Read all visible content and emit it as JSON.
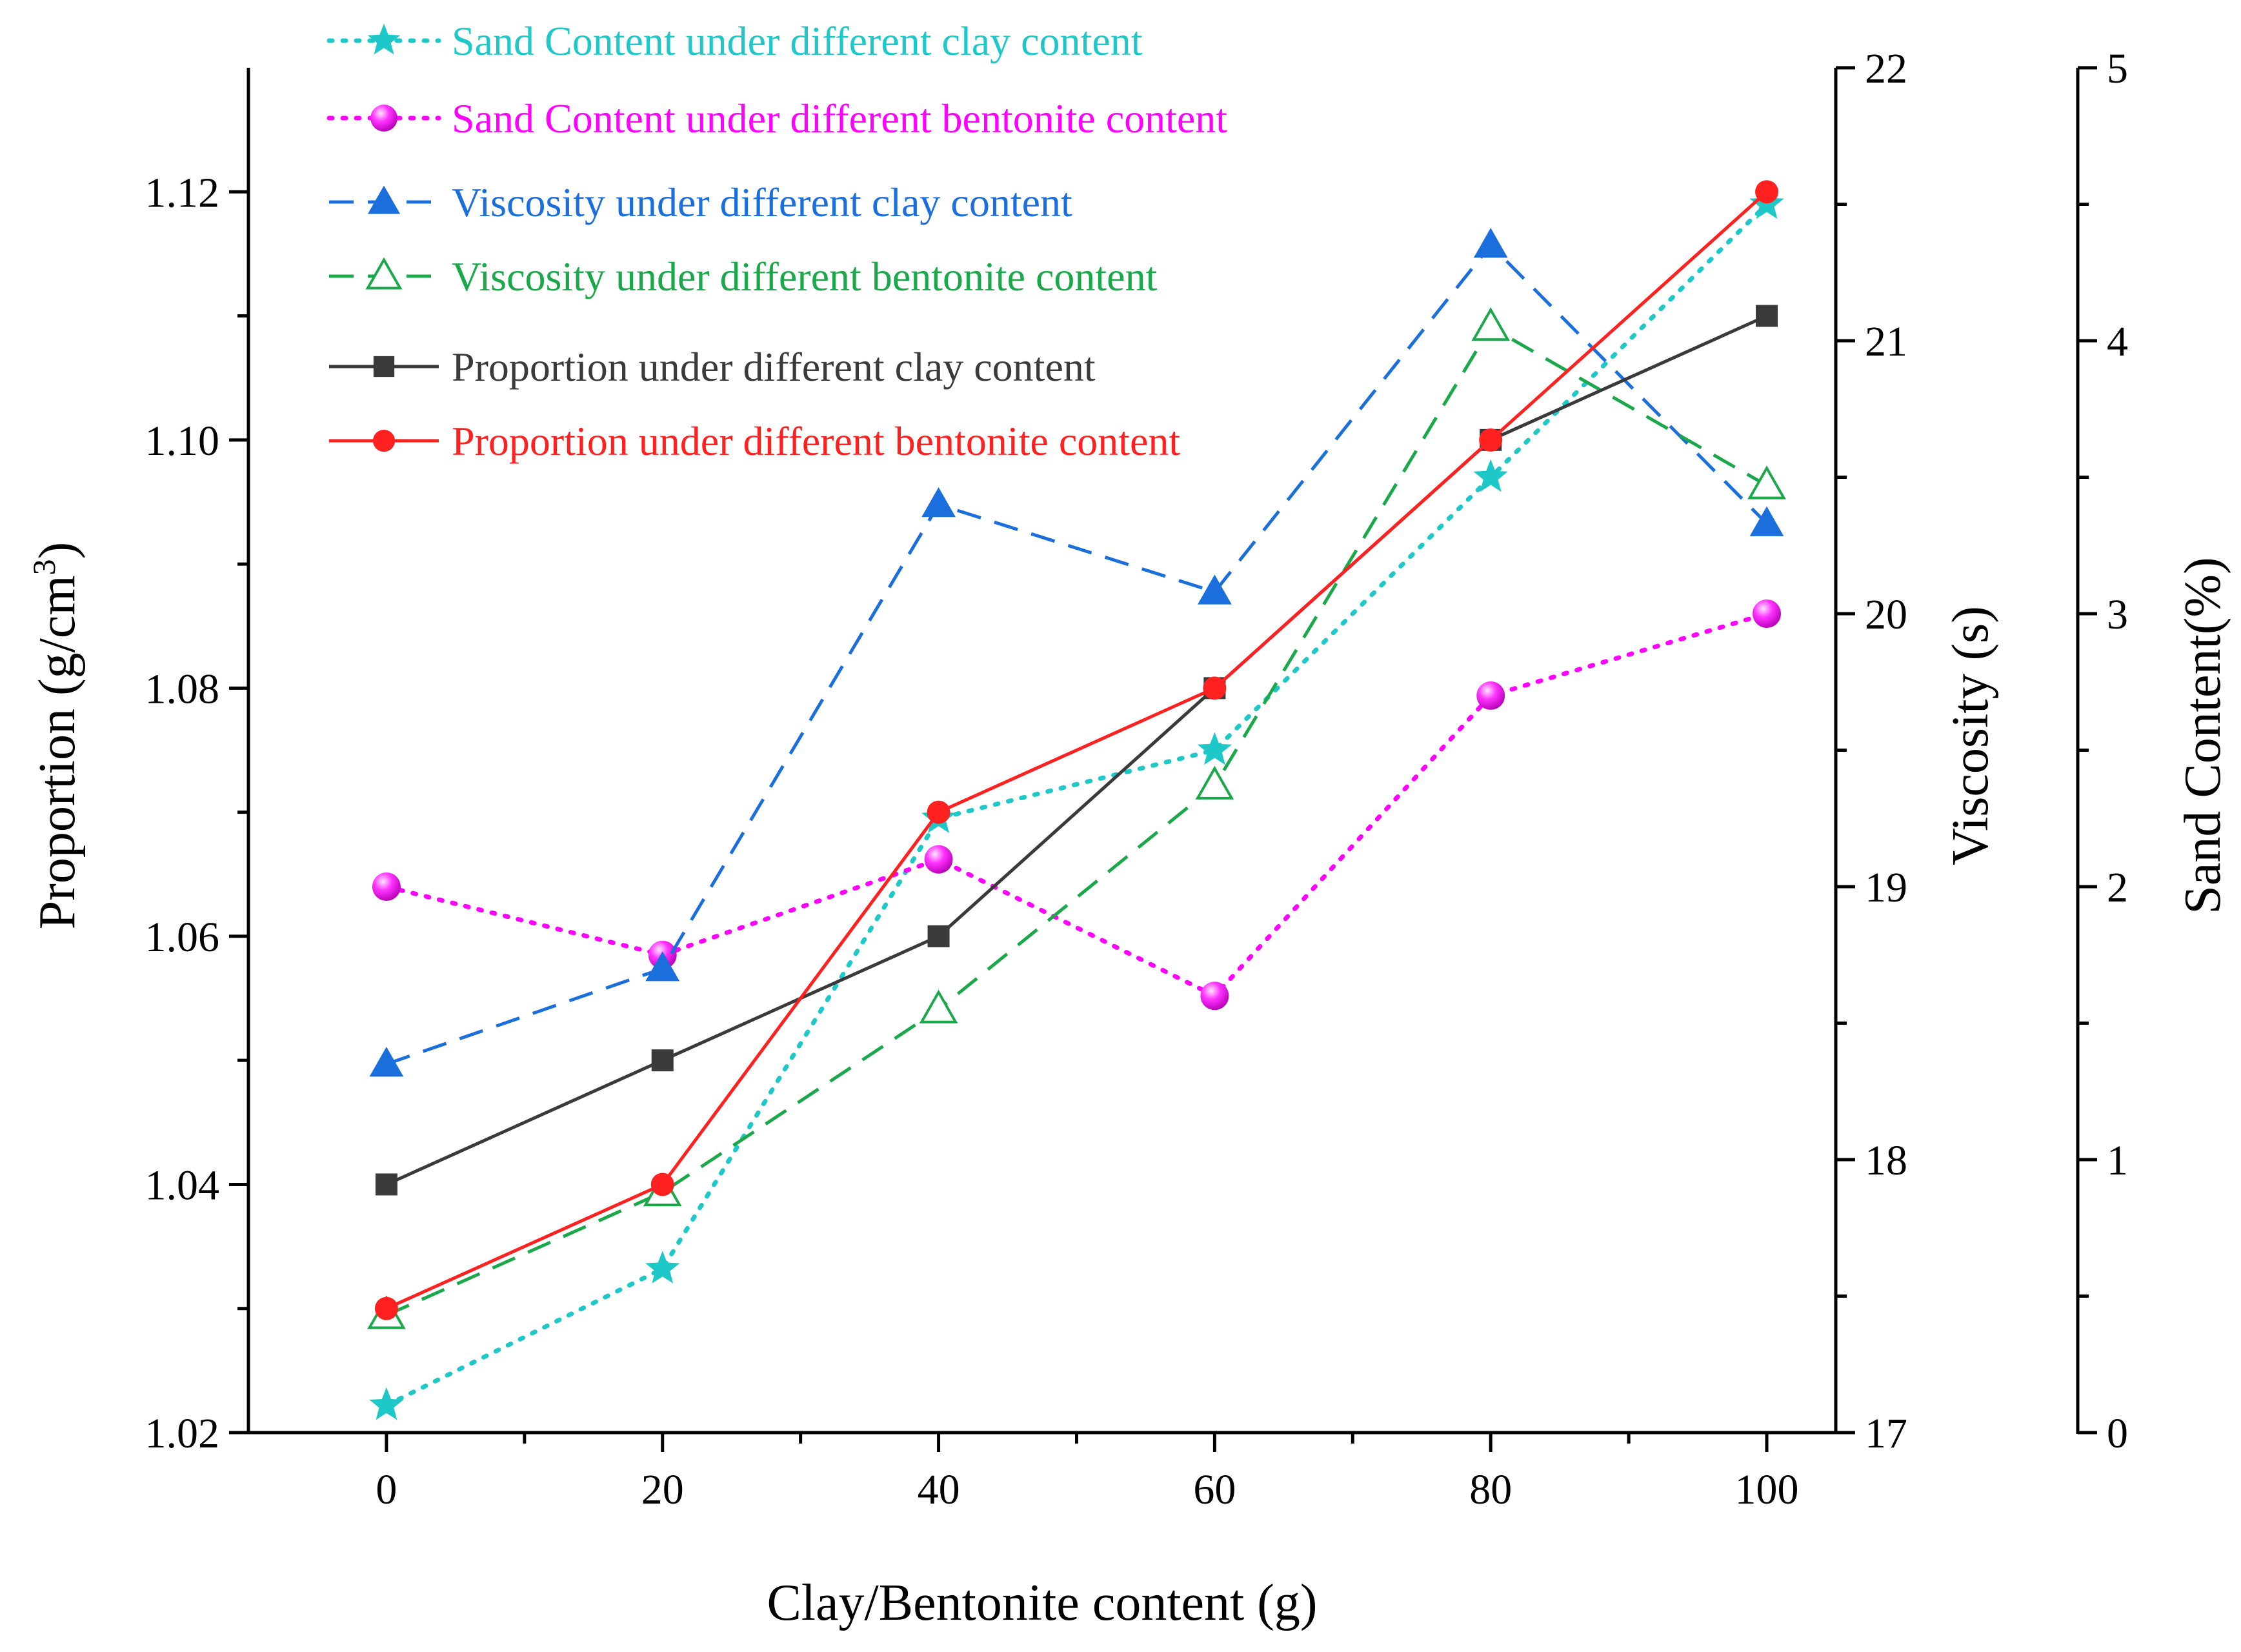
{
  "chart_data": {
    "type": "line",
    "xlabel": "Clay/Bentonite content (g)",
    "x": [
      0,
      20,
      40,
      60,
      80,
      100
    ],
    "x_ticks": [
      "0",
      "20",
      "40",
      "60",
      "80",
      "100"
    ],
    "xlim": [
      -10,
      105
    ],
    "axes": {
      "proportion": {
        "label": "Proportion (g/cm",
        "label_sup": "3",
        "label_end": ")",
        "ylim": [
          1.02,
          1.13
        ],
        "ticks": [
          "1.02",
          "1.04",
          "1.06",
          "1.08",
          "1.10",
          "1.12"
        ],
        "tick_values": [
          1.02,
          1.04,
          1.06,
          1.08,
          1.1,
          1.12
        ]
      },
      "viscosity": {
        "label": "Viscosity (s)",
        "ylim": [
          17,
          22
        ],
        "ticks": [
          "17",
          "18",
          "19",
          "20",
          "21",
          "22"
        ],
        "tick_values": [
          17,
          18,
          19,
          20,
          21,
          22
        ]
      },
      "sand": {
        "label": "Sand Content(%)",
        "ylim": [
          0,
          5
        ],
        "ticks": [
          "0",
          "1",
          "2",
          "3",
          "4",
          "5"
        ],
        "tick_values": [
          0,
          1,
          2,
          3,
          4,
          5
        ]
      }
    },
    "series": [
      {
        "name": "Sand Content under different clay content",
        "axis": "sand",
        "color": "#1ec8c8",
        "dash": "dot",
        "marker": "star",
        "values": [
          0.1,
          0.6,
          2.25,
          2.5,
          3.5,
          4.5
        ]
      },
      {
        "name": "Sand Content under different bentonite content",
        "axis": "sand",
        "color": "#ff00ff",
        "dash": "dot",
        "marker": "sphere",
        "values": [
          2.0,
          1.75,
          2.1,
          1.6,
          2.7,
          3.0
        ]
      },
      {
        "name": "Viscosity under different clay content",
        "axis": "viscosity",
        "color": "#1a6fdc",
        "dash": "dash",
        "marker": "triangle",
        "values": [
          18.35,
          18.7,
          20.4,
          20.08,
          21.35,
          20.33
        ]
      },
      {
        "name": "Viscosity under different bentonite content",
        "axis": "viscosity",
        "color": "#1aa84a",
        "dash": "dash",
        "marker": "triangle-open",
        "values": [
          17.43,
          17.88,
          18.55,
          19.37,
          21.05,
          20.47
        ]
      },
      {
        "name": "Proportion under different clay content",
        "axis": "proportion",
        "color": "#3a3a3a",
        "dash": "solid",
        "marker": "square",
        "values": [
          1.04,
          1.05,
          1.06,
          1.08,
          1.1,
          1.11
        ]
      },
      {
        "name": "Proportion under different bentonite content",
        "axis": "proportion",
        "color": "#ff2020",
        "dash": "solid",
        "marker": "circle",
        "values": [
          1.03,
          1.04,
          1.07,
          1.08,
          1.1,
          1.12
        ]
      }
    ]
  }
}
